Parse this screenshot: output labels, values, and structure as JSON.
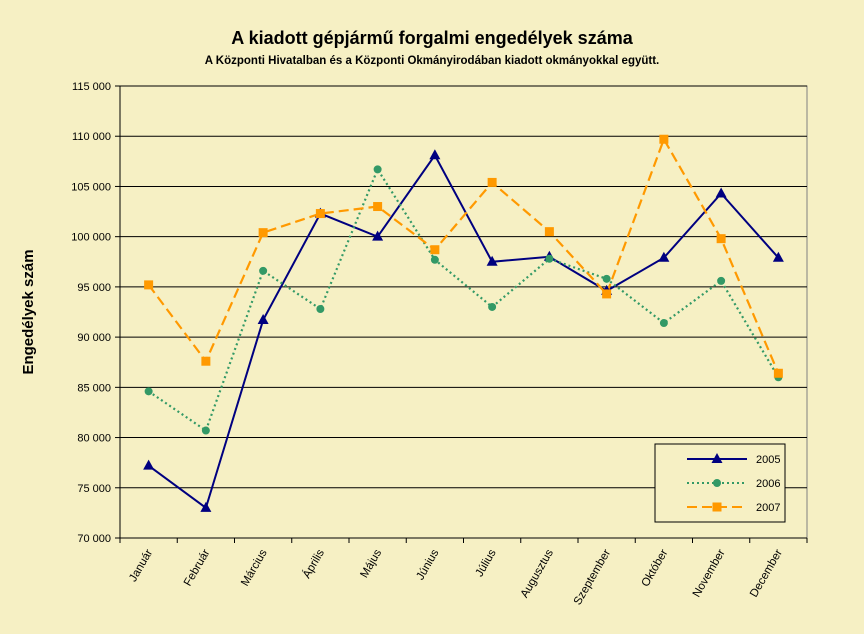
{
  "chart_data": {
    "type": "line",
    "title": "A  kiadott gépjármű forgalmi engedélyek száma",
    "subtitle": "A  Központi Hivatalban és a Központi Okmányirodában kiadott okmányokkal együtt.",
    "xlabel": "",
    "ylabel": "Engedélyek szám",
    "categories": [
      "Január",
      "Február",
      "Március",
      "Április",
      "Május",
      "Június",
      "Július",
      "Augusztus",
      "Szeptember",
      "Október",
      "November",
      "December"
    ],
    "ylim": [
      70000,
      115000
    ],
    "y_ticks": [
      70000,
      75000,
      80000,
      85000,
      90000,
      95000,
      100000,
      105000,
      110000,
      115000
    ],
    "y_tick_labels": [
      "70 000",
      "75 000",
      "80 000",
      "85 000",
      "90 000",
      "95 000",
      "100 000",
      "105 000",
      "110 000",
      "115 000"
    ],
    "grid": "horizontal",
    "legend_position": "bottom-right",
    "series": [
      {
        "name": "2005",
        "color": "#000080",
        "marker": "triangle",
        "line_style": "solid",
        "values": [
          77200,
          73000,
          91700,
          102300,
          100000,
          108100,
          97500,
          98000,
          94600,
          97900,
          104300,
          97900
        ]
      },
      {
        "name": "2006",
        "color": "#339966",
        "marker": "circle",
        "line_style": "dotted",
        "values": [
          84600,
          80700,
          96600,
          92800,
          106700,
          97700,
          93000,
          97800,
          95800,
          91400,
          95600,
          86000
        ]
      },
      {
        "name": "2007",
        "color": "#ff9900",
        "marker": "square",
        "line_style": "dashed",
        "values": [
          95200,
          87600,
          100400,
          102300,
          103000,
          98700,
          105400,
          100500,
          94300,
          109700,
          99800,
          86400
        ]
      }
    ]
  }
}
